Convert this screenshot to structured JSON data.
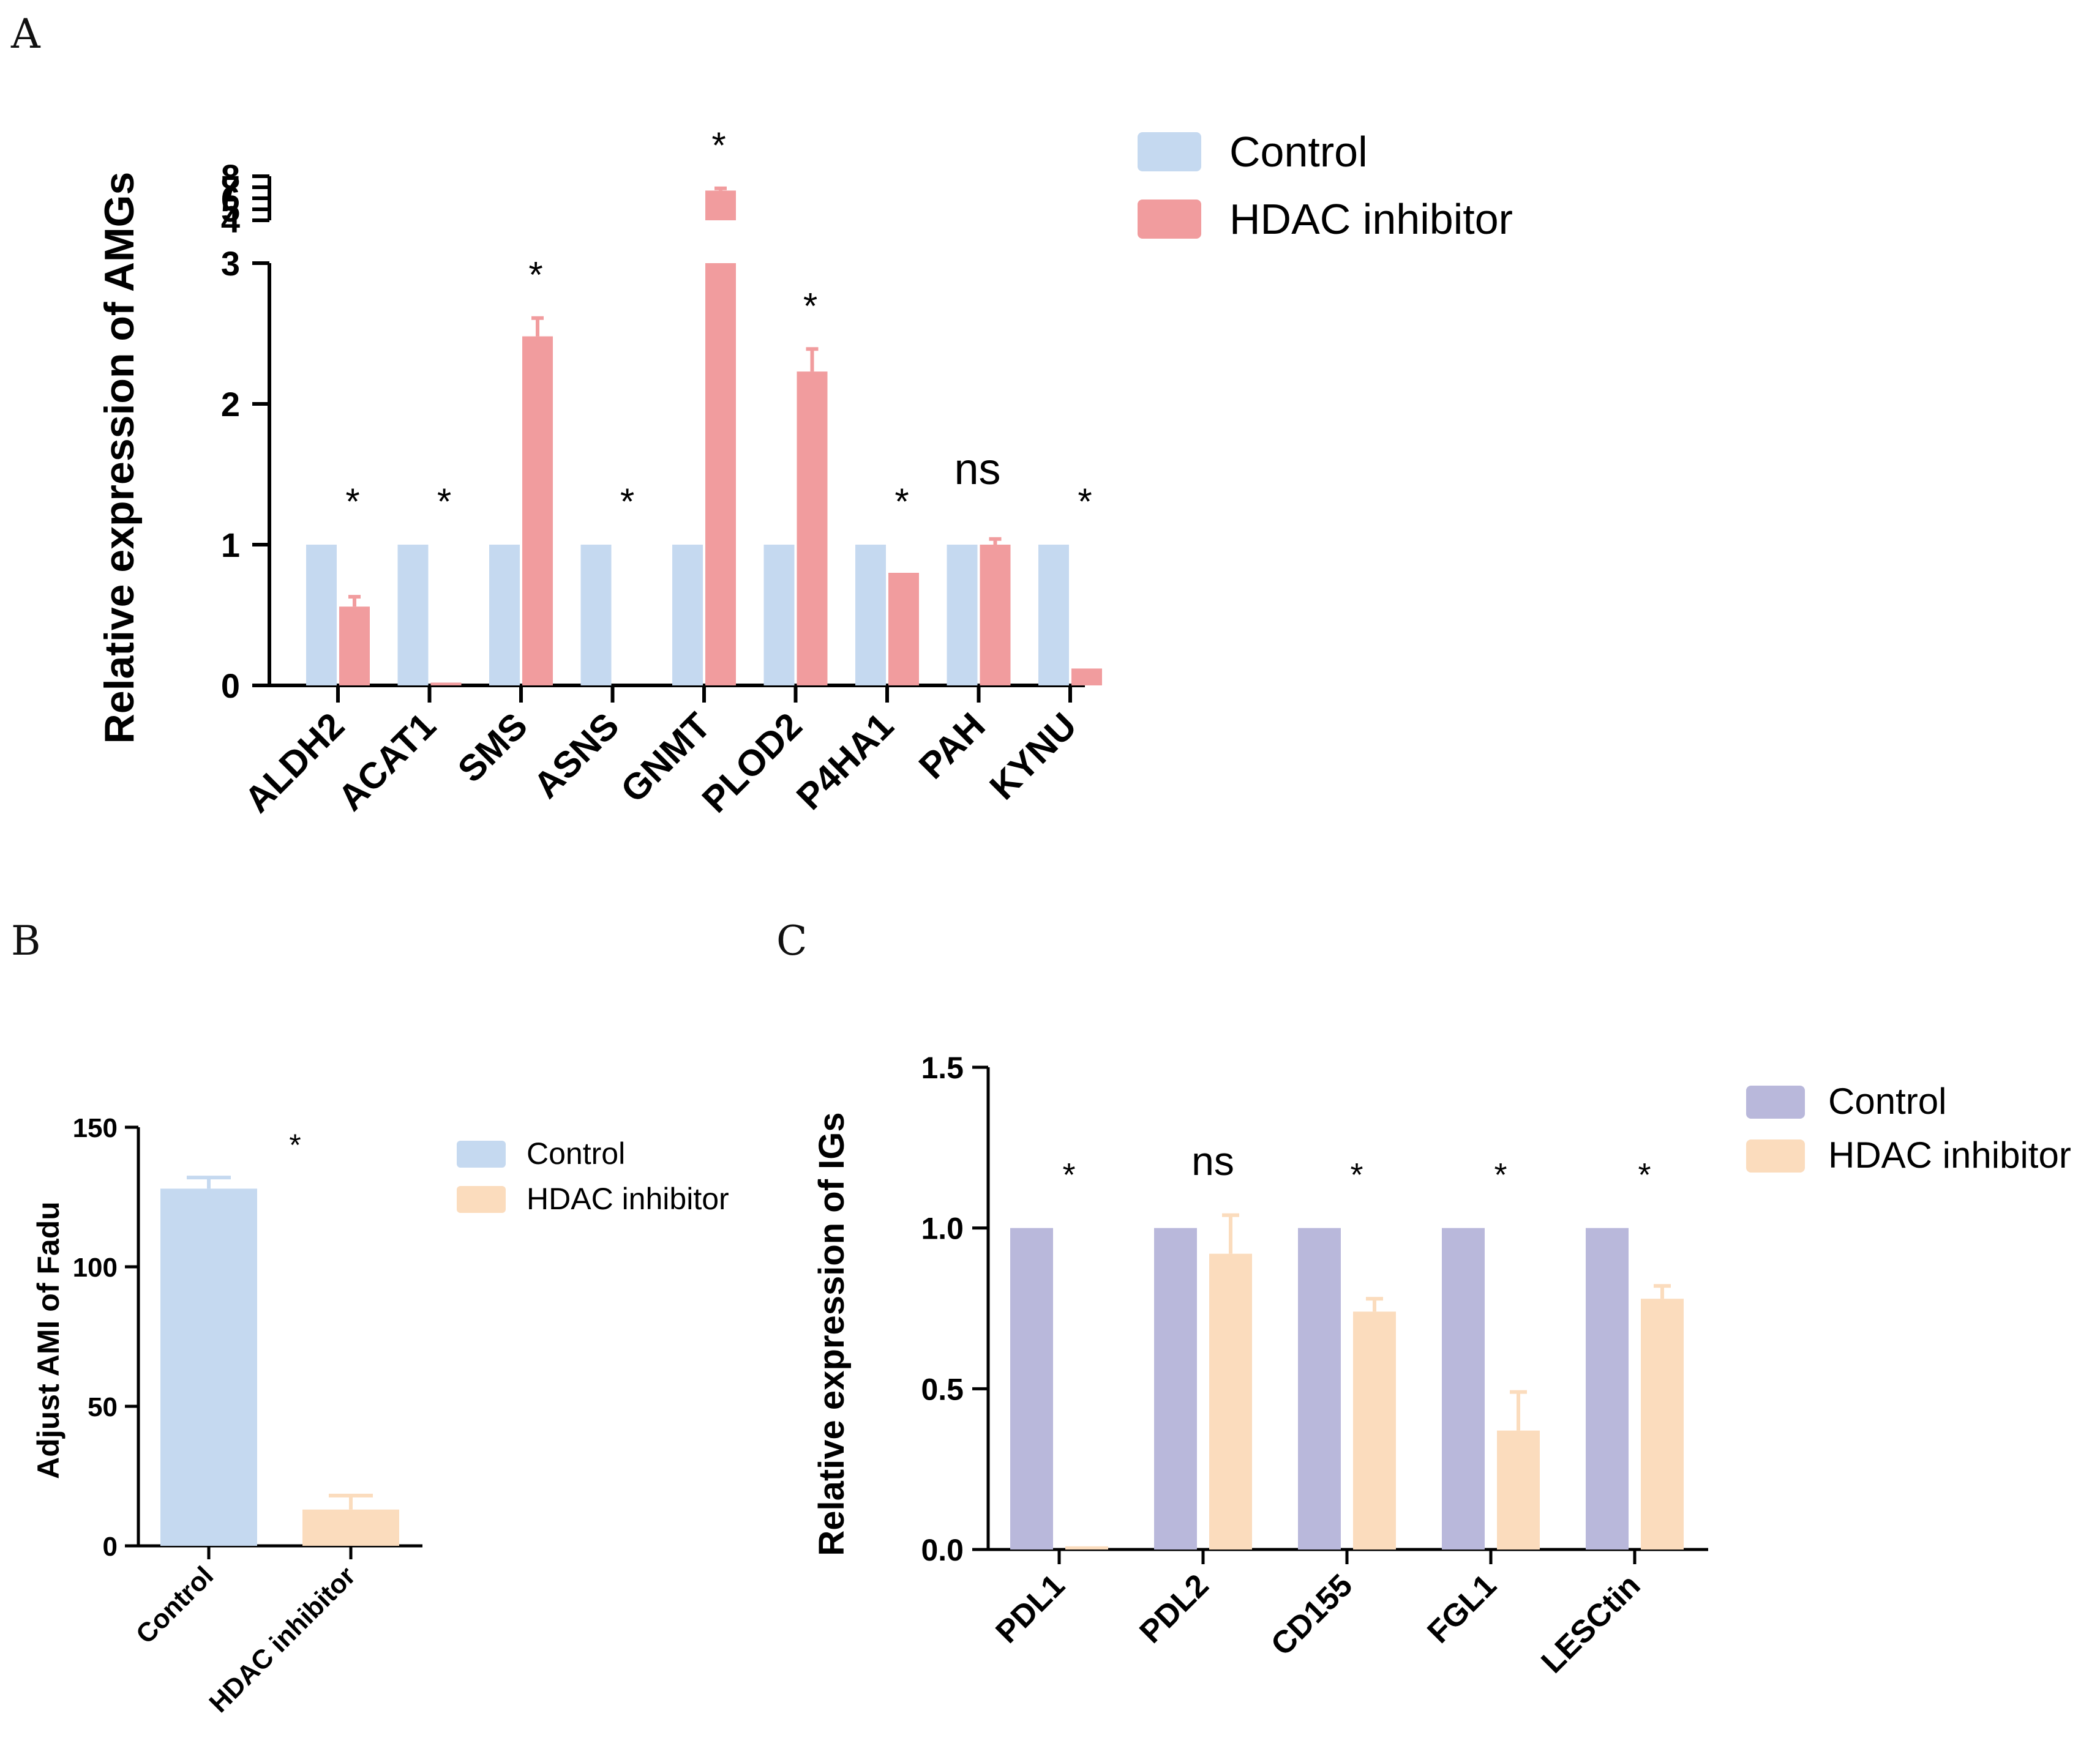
{
  "chart_data": [
    {
      "id": "A",
      "panel_label": "A",
      "type": "bar",
      "ylabel": "Relative expression of AMGs",
      "categories": [
        "ALDH2",
        "ACAT1",
        "SMS",
        "ASNS",
        "GNMT",
        "PLOD2",
        "P4HA1",
        "PAH",
        "KYNU"
      ],
      "series": [
        {
          "name": "Control",
          "color": "#c5d9f0",
          "values": [
            1,
            1,
            1,
            1,
            1,
            1,
            1,
            1,
            1
          ],
          "errors": [
            0,
            0,
            0,
            0,
            0,
            0,
            0,
            0,
            0
          ]
        },
        {
          "name": "HDAC inhibitor",
          "color": "#f19c9e",
          "values": [
            0.56,
            0.02,
            2.48,
            0.0,
            6.7,
            2.23,
            0.8,
            1.0,
            0.12
          ],
          "errors": [
            0.07,
            0.0,
            0.13,
            0.0,
            0.2,
            0.16,
            0.0,
            0.04,
            0.0
          ]
        }
      ],
      "significance": [
        "*",
        "*",
        "*",
        "*",
        "*",
        "*",
        "*",
        "ns",
        "*"
      ],
      "y_axis": {
        "broken": true,
        "lower_range": [
          0,
          3
        ],
        "upper_range": [
          4,
          8
        ],
        "lower_ticks": [
          "0",
          "1",
          "2",
          "3"
        ],
        "upper_ticks": [
          "4",
          "5",
          "6",
          "7",
          "8"
        ]
      },
      "legend": "top-right"
    },
    {
      "id": "B",
      "panel_label": "B",
      "type": "bar",
      "ylabel": "Adjust AMI of Fadu",
      "categories": [
        "Control",
        "HDAC inhibitor"
      ],
      "values": [
        128,
        13
      ],
      "errors": [
        4,
        5
      ],
      "colors": [
        "#c5d9f0",
        "#fbdcbd"
      ],
      "legend_entries": [
        {
          "name": "Control",
          "color": "#c5d9f0"
        },
        {
          "name": "HDAC inhibitor",
          "color": "#fbdcbd"
        }
      ],
      "significance": "*",
      "ylim": [
        0,
        150
      ],
      "yticks": [
        "0",
        "50",
        "100",
        "150"
      ]
    },
    {
      "id": "C",
      "panel_label": "C",
      "type": "bar",
      "ylabel": "Relative expression of IGs",
      "categories": [
        "PDL1",
        "PDL2",
        "CD155",
        "FGL1",
        "LESCtin"
      ],
      "series": [
        {
          "name": "Control",
          "color": "#b9b8db",
          "values": [
            1,
            1,
            1,
            1,
            1
          ],
          "errors": [
            0,
            0,
            0,
            0,
            0
          ]
        },
        {
          "name": "HDAC inhibitor",
          "color": "#fbdcbd",
          "values": [
            0.01,
            0.92,
            0.74,
            0.37,
            0.78
          ],
          "errors": [
            0.0,
            0.12,
            0.04,
            0.12,
            0.04
          ]
        }
      ],
      "significance": [
        "*",
        "ns",
        "*",
        "*",
        "*"
      ],
      "ylim": [
        0,
        1.5
      ],
      "yticks": [
        "0.0",
        "0.5",
        "1.0",
        "1.5"
      ]
    }
  ]
}
